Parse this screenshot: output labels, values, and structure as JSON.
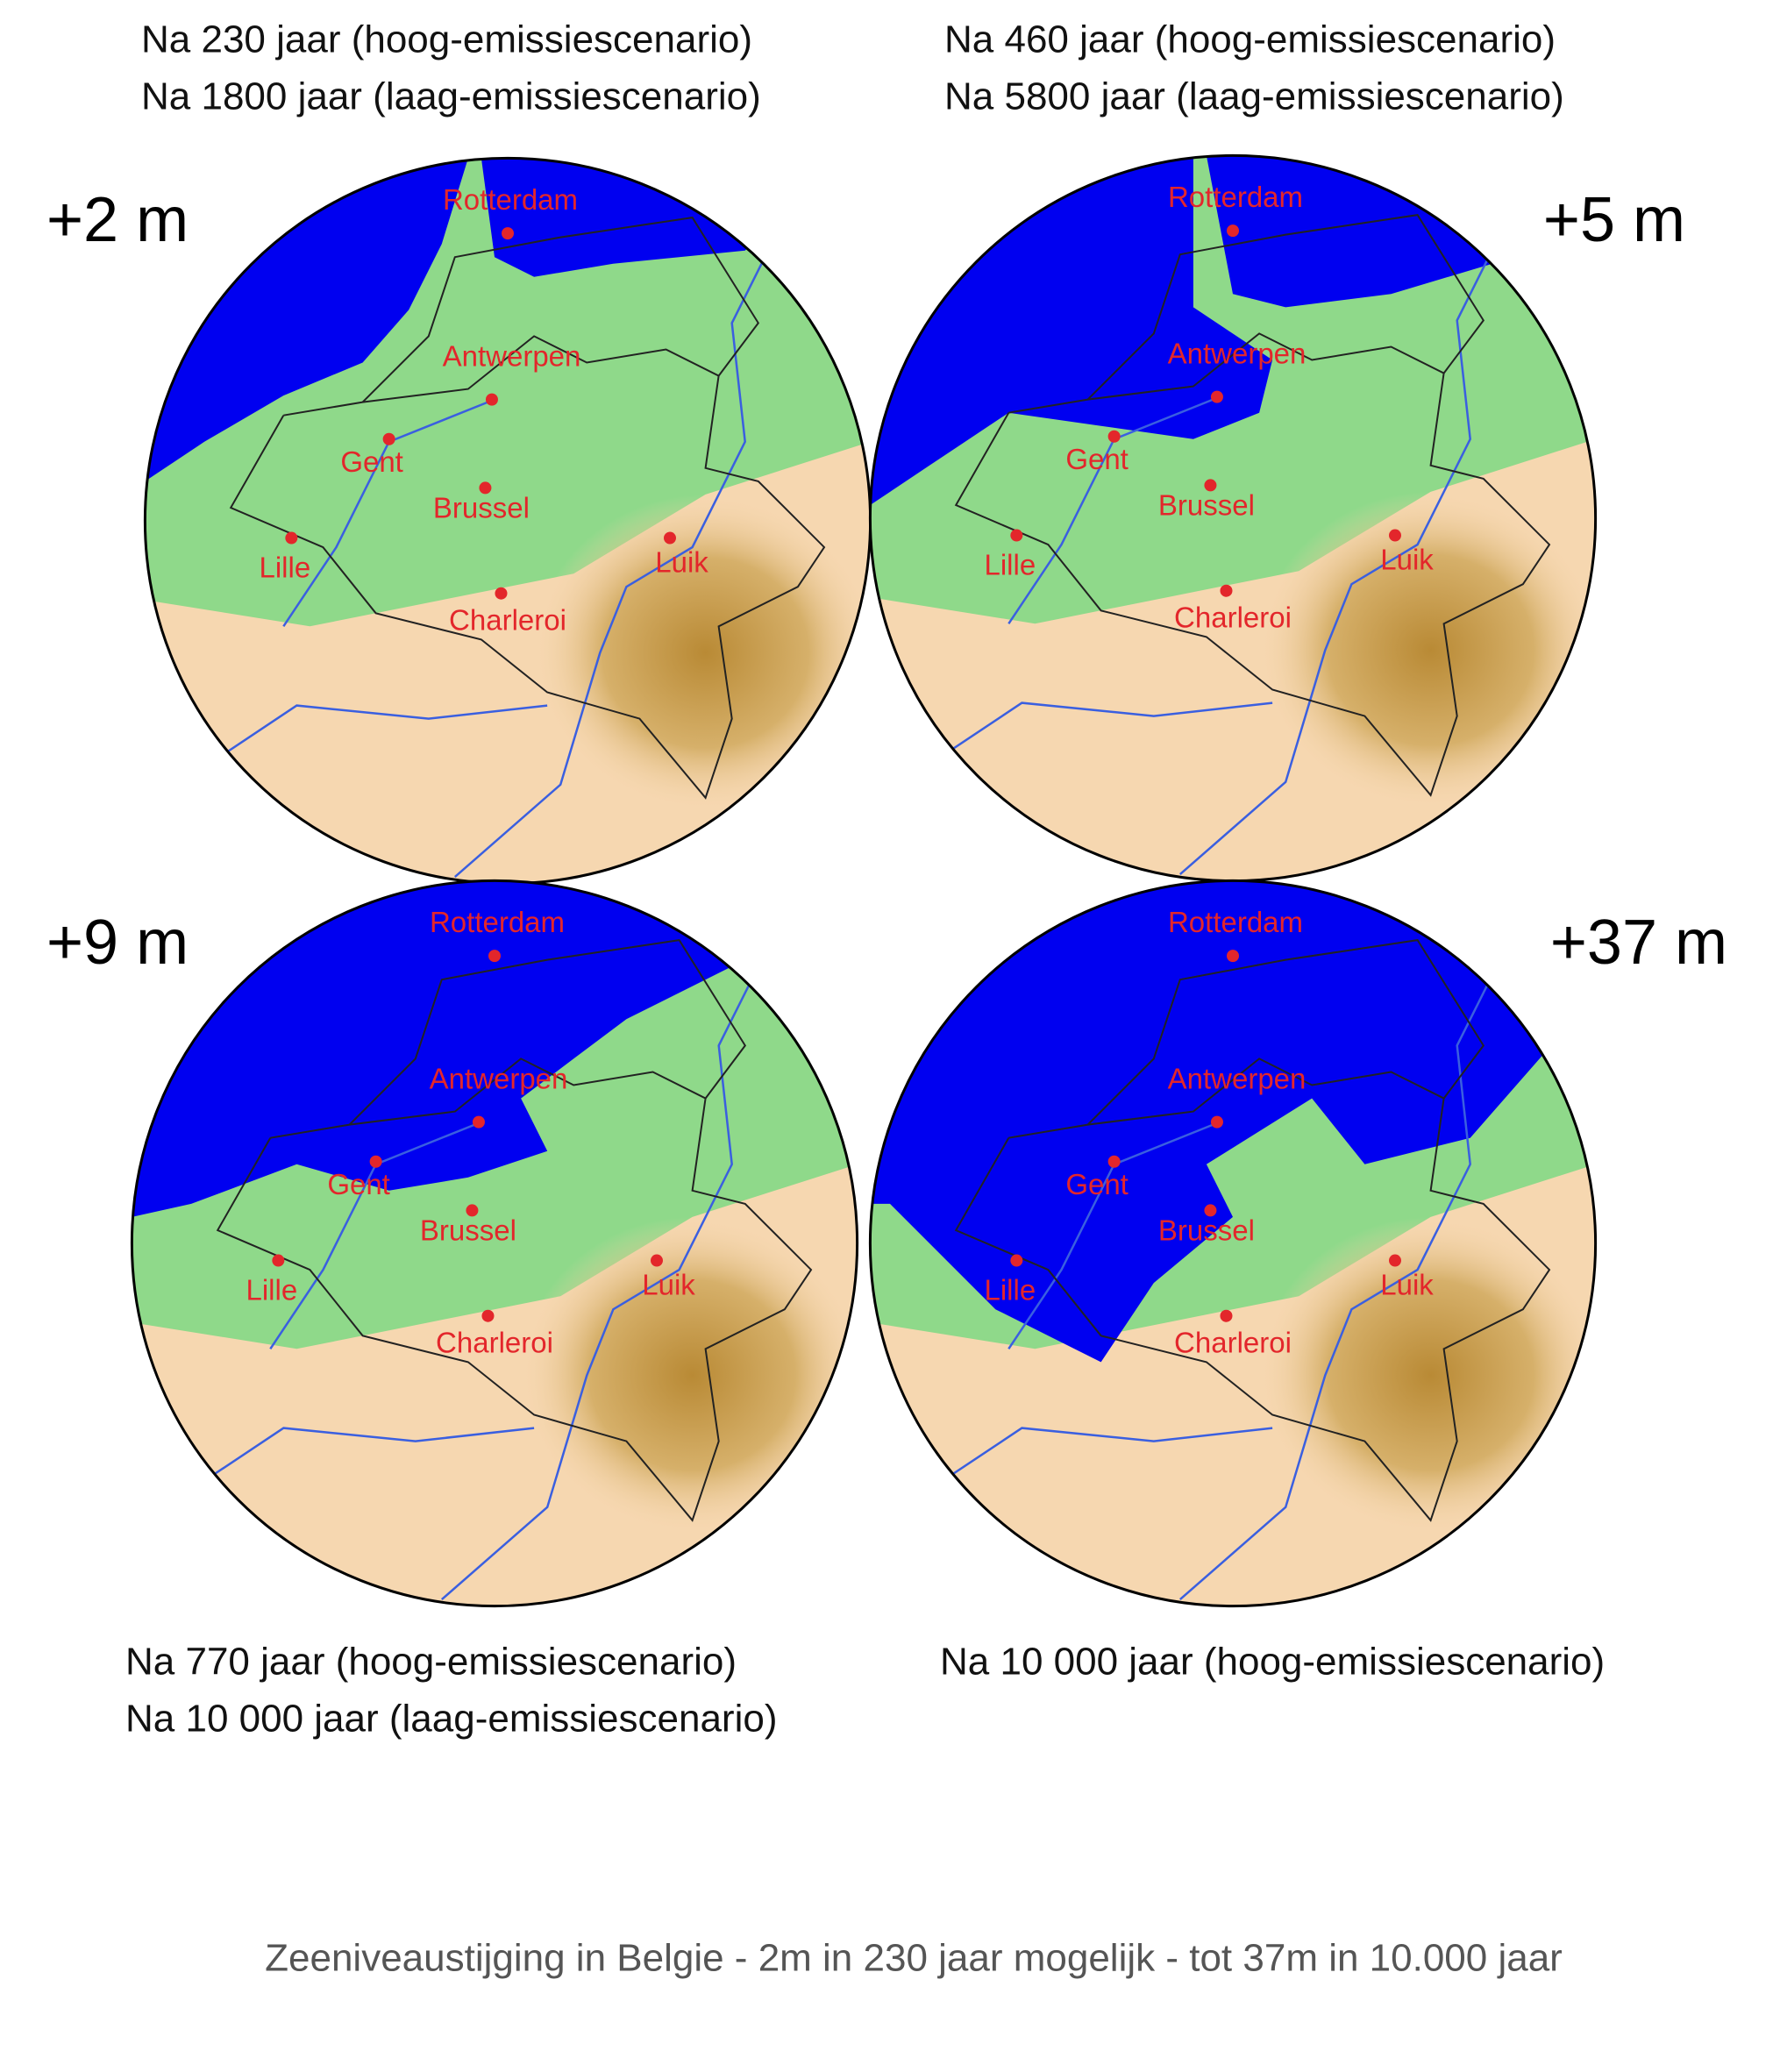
{
  "panels": [
    {
      "level": "+2 m",
      "caption": [
        "Na 230 jaar  (hoog-emissiescenario)",
        "Na 1800 jaar (laag-emissiescenario)"
      ]
    },
    {
      "level": "+5 m",
      "caption": [
        "Na 460 jaar (hoog-emissiescenario)",
        "Na 5800 jaar (laag-emissiescenario)"
      ]
    },
    {
      "level": "+9 m",
      "caption": [
        "Na 770 jaar (hoog-emissiescenario)",
        "Na 10 000 jaar (laag-emissiescenario)"
      ]
    },
    {
      "level": "+37 m",
      "caption": [
        "Na 10 000 jaar (hoog-emissiescenario)"
      ]
    }
  ],
  "cities": [
    "Rotterdam",
    "Antwerpen",
    "Gent",
    "Brussel",
    "Lille",
    "Luik",
    "Charleroi"
  ],
  "footer": "Zeeniveaustijging in Belgie - 2m in 230 jaar mogelijk - tot 37m in 10.000 jaar"
}
